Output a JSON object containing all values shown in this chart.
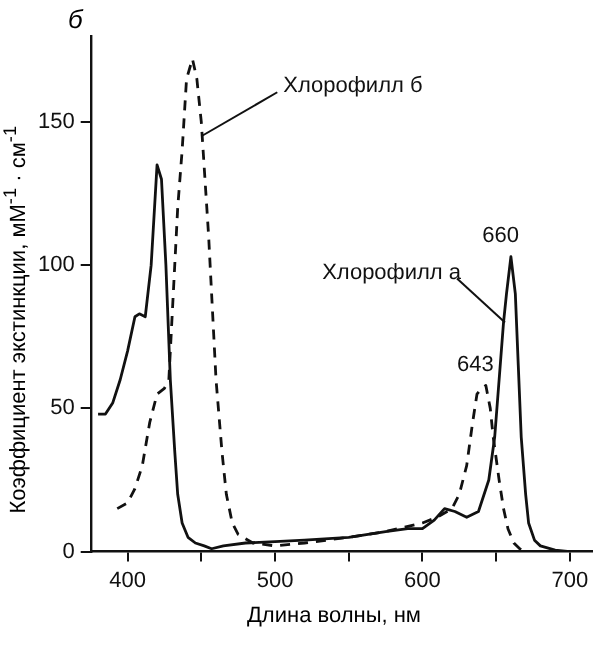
{
  "chart_data": {
    "type": "line",
    "xlabel": "Длина волны, нм",
    "ylabel": "Коэффициент экстинкции, мМ$^{-1}$ · см$^{-1}$",
    "xlim": [
      375,
      715
    ],
    "xticks": [
      400,
      {
        "value": 450,
        "label": null
      },
      500,
      {
        "value": 550,
        "label": null
      },
      600,
      {
        "value": 650,
        "label": null
      },
      700
    ],
    "ylim": [
      0,
      180
    ],
    "yticks": [
      0,
      50,
      100,
      150
    ],
    "grid": false,
    "legend": false,
    "marker": "none",
    "series": [
      {
        "color": "#111111",
        "line_style": "solid",
        "x": [
          380,
          385,
          390,
          395,
          400,
          405,
          408,
          412,
          416,
          420,
          423,
          426,
          429,
          432,
          434,
          437,
          441,
          446,
          452,
          457,
          465,
          480,
          500,
          520,
          550,
          575,
          590,
          600,
          608,
          615,
          622,
          630,
          638,
          645,
          649,
          652,
          655,
          657,
          660,
          663,
          665,
          667,
          670,
          672,
          676,
          680,
          690,
          700
        ],
        "values": [
          48,
          48,
          52,
          60,
          70,
          82,
          83,
          82,
          100,
          135,
          130,
          100,
          60,
          35,
          20,
          10,
          5,
          3,
          2,
          1,
          2,
          3,
          3.5,
          4,
          5,
          7,
          8,
          8,
          11,
          15,
          14,
          12,
          14,
          25,
          40,
          60,
          80,
          90,
          103,
          90,
          65,
          40,
          20,
          10,
          4,
          2,
          0.5,
          0
        ]
      },
      {
        "color": "#111111",
        "line_style": "dashed",
        "x": [
          393,
          400,
          405,
          410,
          415,
          420,
          425,
          428,
          430,
          434,
          437,
          440,
          444,
          447,
          450,
          455,
          460,
          464,
          467,
          471,
          475,
          485,
          500,
          520,
          550,
          575,
          600,
          610,
          620,
          625,
          630,
          634,
          637,
          640,
          643,
          646,
          648,
          652,
          655,
          658,
          662,
          666,
          670
        ],
        "values": [
          15,
          17,
          22,
          30,
          45,
          55,
          57,
          60,
          80,
          120,
          140,
          165,
          172,
          165,
          150,
          110,
          60,
          35,
          20,
          10,
          6,
          3,
          2,
          3,
          5,
          7,
          10,
          12,
          15,
          20,
          30,
          45,
          55,
          57,
          58,
          50,
          40,
          25,
          15,
          8,
          3,
          1,
          0
        ]
      }
    ],
    "annotations": [
      "б",
      {
        "text": "Хлорофилл б",
        "x": 450,
        "y": 145
      },
      {
        "text": "Хлорофилл а",
        "x": 656,
        "y": 80
      },
      {
        "text": "660",
        "x": 660,
        "y": 103
      },
      {
        "text": "643",
        "x": 643,
        "y": 58
      }
    ]
  }
}
